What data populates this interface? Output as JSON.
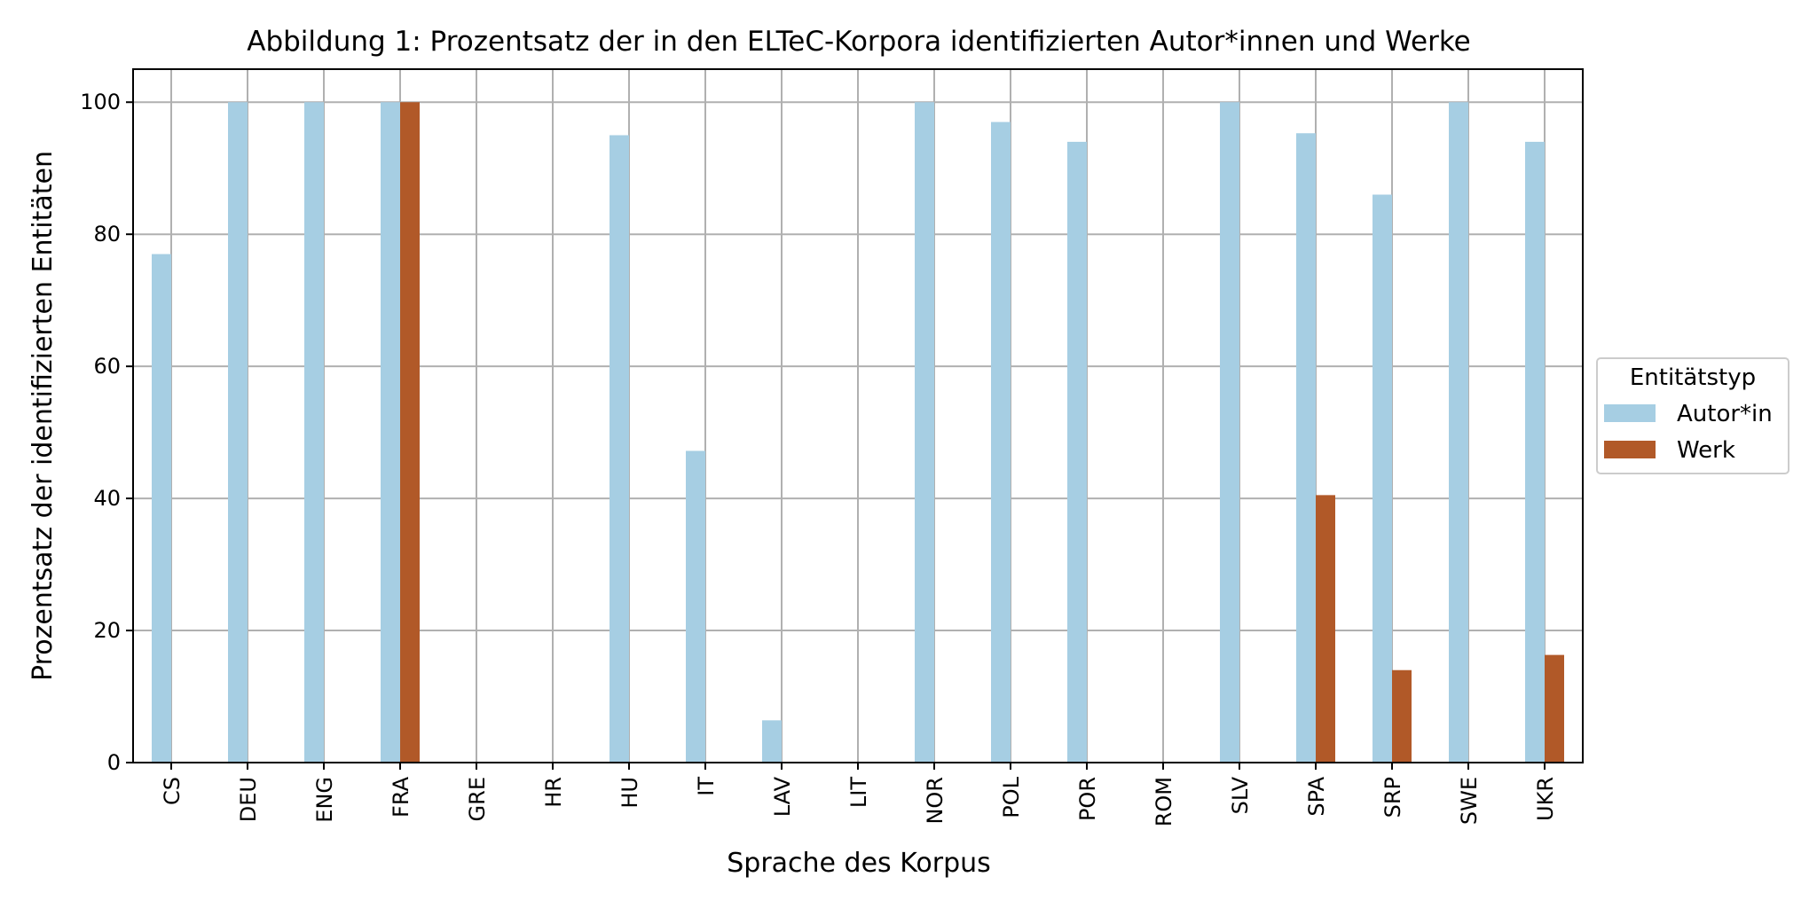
{
  "chart_data": {
    "type": "bar",
    "title": "Abbildung 1: Prozentsatz der in den ELTeC-Korpora identifizierten Autor*innen und Werke",
    "xlabel": "Sprache des Korpus",
    "ylabel": "Prozentsatz der identifizierten Entitäten",
    "categories": [
      "CS",
      "DEU",
      "ENG",
      "FRA",
      "GRE",
      "HR",
      "HU",
      "IT",
      "LAV",
      "LIT",
      "NOR",
      "POL",
      "POR",
      "ROM",
      "SLV",
      "SPA",
      "SRP",
      "SWE",
      "UKR"
    ],
    "series": [
      {
        "name": "Autor*in",
        "color": "#a6cee3",
        "values": [
          77,
          100,
          100,
          100,
          0,
          0,
          95,
          47.2,
          6.4,
          0,
          100,
          97,
          94,
          0,
          100,
          95.3,
          86,
          100,
          94
        ]
      },
      {
        "name": "Werk",
        "color": "#b15928",
        "values": [
          0,
          0,
          0,
          100,
          0,
          0,
          0,
          0,
          0,
          0,
          0,
          0,
          0,
          0,
          0,
          40.5,
          14,
          0,
          16.3
        ]
      }
    ],
    "ylim": [
      0,
      105
    ],
    "yticks": [
      0,
      20,
      40,
      60,
      80,
      100
    ],
    "grid": true,
    "legend": {
      "title": "Entitätstyp",
      "placement": "right"
    }
  }
}
